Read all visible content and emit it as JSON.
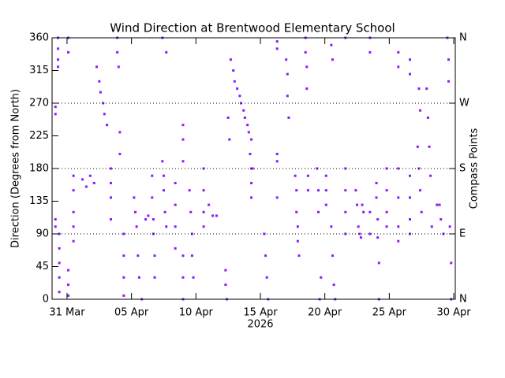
{
  "chart_data": {
    "type": "scatter",
    "title": "Wind Direction at Brentwood Elementary School",
    "xlabel": "2026",
    "ylabel": "Direction (Degrees from North)",
    "y2label": "Compass Points",
    "color": "#8c1aff",
    "grid": true,
    "xlim": [
      -1.16,
      30.12
    ],
    "xticks": [
      {
        "value": 0,
        "label": "31 Mar"
      },
      {
        "value": 5,
        "label": "05 Apr"
      },
      {
        "value": 10,
        "label": "10 Apr"
      },
      {
        "value": 15,
        "label": "15 Apr"
      },
      {
        "value": 20,
        "label": "20 Apr"
      },
      {
        "value": 25,
        "label": "25 Apr"
      },
      {
        "value": 30,
        "label": "30 Apr"
      }
    ],
    "ylim": [
      0,
      360
    ],
    "yticks": [
      0,
      45,
      90,
      135,
      180,
      225,
      270,
      315,
      360
    ],
    "y2lim": [
      0,
      360
    ],
    "y2ticks": [
      {
        "value": 0,
        "label": "N"
      },
      {
        "value": 90,
        "label": "E"
      },
      {
        "value": 180,
        "label": "S"
      },
      {
        "value": 270,
        "label": "W"
      },
      {
        "value": 360,
        "label": "N"
      }
    ],
    "x": [
      -0.9,
      -0.9,
      -0.9,
      -0.9,
      -0.7,
      -0.7,
      -0.7,
      -0.7,
      -0.6,
      -0.6,
      -0.6,
      -0.6,
      -0.6,
      0.1,
      0.1,
      0.1,
      0.1,
      0.1,
      0.5,
      0.5,
      0.5,
      0.5,
      0.5,
      1.2,
      1.5,
      1.8,
      2.1,
      2.3,
      2.5,
      2.6,
      2.8,
      2.9,
      3.1,
      3.4,
      3.4,
      3.4,
      3.4,
      3.9,
      3.9,
      4.0,
      4.1,
      4.1,
      4.4,
      4.4,
      4.4,
      4.4,
      5.2,
      5.3,
      5.4,
      5.5,
      5.6,
      5.8,
      6.1,
      6.3,
      6.6,
      6.6,
      6.7,
      6.7,
      6.8,
      6.8,
      7.4,
      7.5,
      7.5,
      7.6,
      7.7,
      7.4,
      7.7,
      8.4,
      8.4,
      8.4,
      8.4,
      9.0,
      9.0,
      9.0,
      9.0,
      9.0,
      9.0,
      9.5,
      9.6,
      9.7,
      9.7,
      9.8,
      10.6,
      10.6,
      10.6,
      10.6,
      11.0,
      11.3,
      11.6,
      12.3,
      12.3,
      12.4,
      12.5,
      12.6,
      12.7,
      12.9,
      13.0,
      13.2,
      13.4,
      13.5,
      13.7,
      13.8,
      14.0,
      14.1,
      14.2,
      14.4,
      14.3,
      14.3,
      14.3,
      14.3,
      15.3,
      15.4,
      15.5,
      15.6,
      16.3,
      16.3,
      16.3,
      16.3,
      16.3,
      17.0,
      17.1,
      17.1,
      17.2,
      17.7,
      17.8,
      17.8,
      17.9,
      17.9,
      18.0,
      18.5,
      18.5,
      18.6,
      18.6,
      18.7,
      18.7,
      19.4,
      19.5,
      19.5,
      19.6,
      19.7,
      20.1,
      20.1,
      20.1,
      20.5,
      20.6,
      20.7,
      20.8,
      20.5,
      20.6,
      21.6,
      21.6,
      21.6,
      21.6,
      21.6,
      22.4,
      22.5,
      22.6,
      22.7,
      22.8,
      22.9,
      23.0,
      23.5,
      23.5,
      23.5,
      23.5,
      24.0,
      24.0,
      24.1,
      24.1,
      24.2,
      24.2,
      24.8,
      24.8,
      24.8,
      24.8,
      25.7,
      25.7,
      25.7,
      25.7,
      25.7,
      25.7,
      26.6,
      26.6,
      26.6,
      26.6,
      26.6,
      26.6,
      27.2,
      27.3,
      27.4,
      27.5,
      27.3,
      27.4,
      27.9,
      28.0,
      28.1,
      28.2,
      28.3,
      28.7,
      28.9,
      29.0,
      29.2,
      29.5,
      29.6,
      29.6,
      29.7,
      29.8,
      29.8
    ],
    "values": [
      255,
      265,
      110,
      100,
      360,
      345,
      330,
      320,
      90,
      70,
      50,
      30,
      10,
      40,
      20,
      5,
      360,
      340,
      170,
      150,
      120,
      100,
      80,
      165,
      155,
      170,
      160,
      320,
      300,
      285,
      270,
      255,
      240,
      180,
      160,
      140,
      110,
      360,
      340,
      320,
      230,
      200,
      90,
      60,
      30,
      5,
      140,
      120,
      100,
      60,
      30,
      0,
      110,
      115,
      170,
      140,
      110,
      90,
      60,
      30,
      190,
      170,
      150,
      120,
      100,
      360,
      340,
      160,
      130,
      100,
      70,
      240,
      220,
      190,
      60,
      30,
      0,
      150,
      120,
      90,
      60,
      30,
      180,
      150,
      120,
      100,
      130,
      115,
      115,
      40,
      20,
      0,
      250,
      220,
      330,
      315,
      300,
      290,
      280,
      270,
      260,
      250,
      240,
      230,
      200,
      180,
      220,
      180,
      160,
      140,
      90,
      60,
      30,
      0,
      200,
      190,
      140,
      345,
      355,
      330,
      310,
      280,
      250,
      170,
      150,
      120,
      100,
      80,
      60,
      360,
      340,
      320,
      290,
      170,
      150,
      180,
      150,
      120,
      0,
      30,
      170,
      150,
      130,
      100,
      60,
      20,
      0,
      350,
      330,
      180,
      150,
      120,
      90,
      360,
      150,
      130,
      100,
      90,
      85,
      130,
      120,
      360,
      340,
      120,
      90,
      160,
      140,
      110,
      85,
      50,
      0,
      180,
      150,
      120,
      100,
      180,
      140,
      100,
      80,
      340,
      320,
      170,
      140,
      110,
      90,
      330,
      310,
      210,
      180,
      150,
      120,
      290,
      260,
      290,
      250,
      210,
      170,
      100,
      130,
      130,
      110,
      90,
      360,
      330,
      300,
      100,
      50,
      0
    ]
  }
}
